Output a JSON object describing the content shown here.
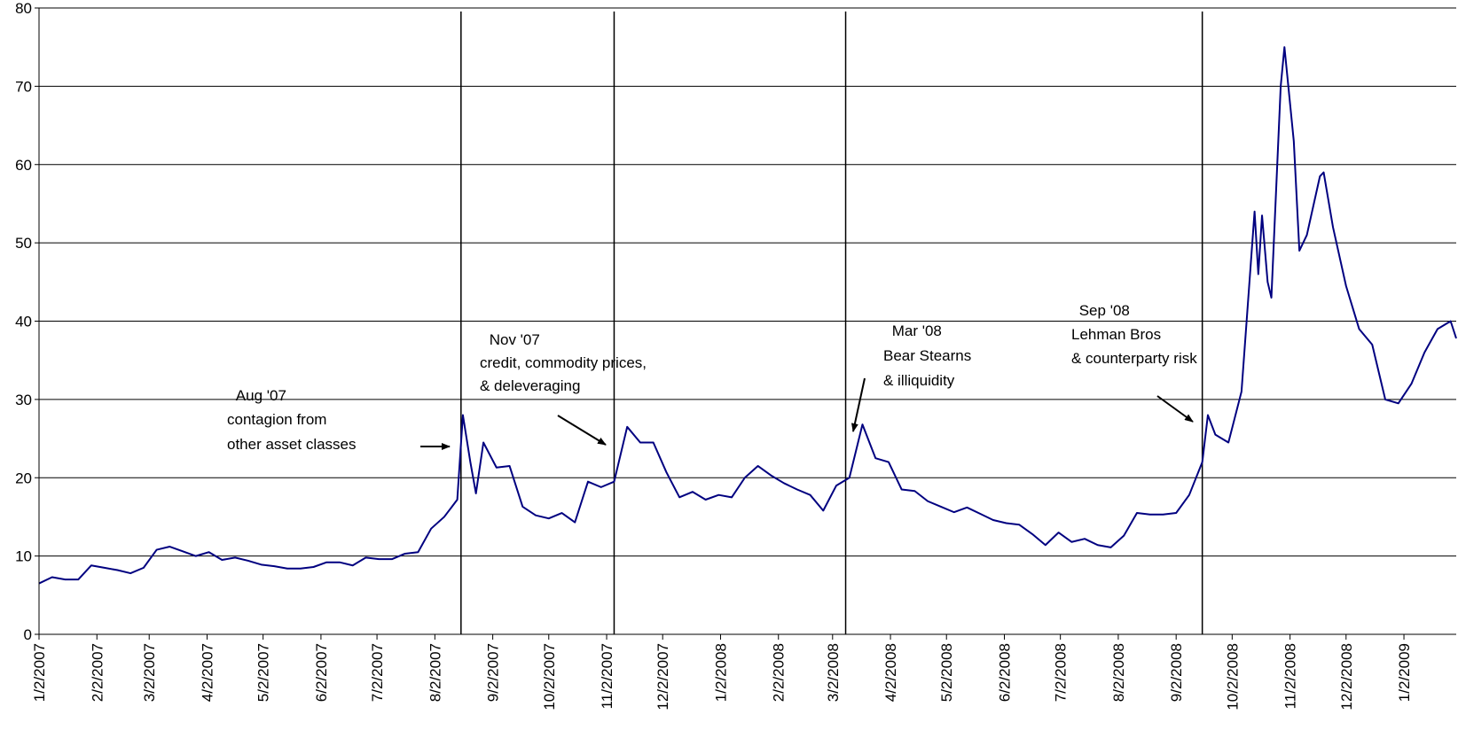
{
  "chart_data": {
    "type": "line",
    "x": [
      "1/2/2007",
      "1/9/2007",
      "1/16/2007",
      "1/23/2007",
      "1/30/2007",
      "2/6/2007",
      "2/13/2007",
      "2/20/2007",
      "2/27/2007",
      "3/6/2007",
      "3/13/2007",
      "3/20/2007",
      "3/27/2007",
      "4/3/2007",
      "4/10/2007",
      "4/17/2007",
      "4/24/2007",
      "5/1/2007",
      "5/8/2007",
      "5/15/2007",
      "5/22/2007",
      "5/29/2007",
      "6/5/2007",
      "6/12/2007",
      "6/19/2007",
      "6/26/2007",
      "7/3/2007",
      "7/10/2007",
      "7/17/2007",
      "7/24/2007",
      "7/31/2007",
      "8/7/2007",
      "8/14/2007",
      "8/17/2007",
      "8/21/2007",
      "8/24/2007",
      "8/28/2007",
      "9/4/2007",
      "9/11/2007",
      "9/18/2007",
      "9/25/2007",
      "10/2/2007",
      "10/9/2007",
      "10/16/2007",
      "10/23/2007",
      "10/30/2007",
      "11/6/2007",
      "11/13/2007",
      "11/20/2007",
      "11/27/2007",
      "12/4/2007",
      "12/11/2007",
      "12/18/2007",
      "12/25/2007",
      "1/1/2008",
      "1/8/2008",
      "1/15/2008",
      "1/22/2008",
      "1/29/2008",
      "2/5/2008",
      "2/12/2008",
      "2/19/2008",
      "2/26/2008",
      "3/4/2008",
      "3/11/2008",
      "3/18/2008",
      "3/25/2008",
      "4/1/2008",
      "4/8/2008",
      "4/15/2008",
      "4/22/2008",
      "4/29/2008",
      "5/6/2008",
      "5/13/2008",
      "5/20/2008",
      "5/27/2008",
      "6/3/2008",
      "6/10/2008",
      "6/17/2008",
      "6/24/2008",
      "7/1/2008",
      "7/8/2008",
      "7/15/2008",
      "7/22/2008",
      "7/29/2008",
      "8/5/2008",
      "8/12/2008",
      "8/19/2008",
      "8/26/2008",
      "9/2/2008",
      "9/9/2008",
      "9/16/2008",
      "9/19/2008",
      "9/23/2008",
      "9/30/2008",
      "10/7/2008",
      "10/14/2008",
      "10/16/2008",
      "10/18/2008",
      "10/21/2008",
      "10/23/2008",
      "10/28/2008",
      "10/30/2008",
      "11/4/2008",
      "11/7/2008",
      "11/11/2008",
      "11/18/2008",
      "11/20/2008",
      "11/25/2008",
      "12/2/2008",
      "12/9/2008",
      "12/16/2008",
      "12/23/2008",
      "12/30/2008",
      "1/6/2009",
      "1/13/2009",
      "1/20/2009",
      "1/27/2009",
      "1/30/2009"
    ],
    "series": [
      {
        "color": "#000080",
        "values": [
          6.5,
          7.3,
          7.0,
          7.0,
          8.8,
          8.5,
          8.2,
          7.8,
          8.5,
          10.8,
          11.2,
          10.6,
          10.0,
          10.5,
          9.5,
          9.8,
          9.4,
          8.9,
          8.7,
          8.4,
          8.4,
          8.6,
          9.2,
          9.2,
          8.8,
          9.8,
          9.6,
          9.6,
          10.3,
          10.5,
          13.5,
          15.0,
          17.2,
          28.0,
          22.0,
          18.0,
          24.5,
          21.3,
          21.5,
          16.3,
          15.2,
          14.8,
          15.5,
          14.3,
          19.5,
          18.8,
          19.5,
          26.5,
          24.5,
          24.5,
          20.7,
          17.5,
          18.2,
          17.2,
          17.8,
          17.5,
          20.0,
          21.5,
          20.3,
          19.3,
          18.5,
          17.8,
          15.8,
          19.0,
          20.0,
          26.8,
          22.5,
          22.0,
          18.5,
          18.3,
          17.0,
          16.3,
          15.6,
          16.2,
          15.4,
          14.6,
          14.2,
          14.0,
          12.8,
          11.4,
          13.0,
          11.8,
          12.2,
          11.4,
          11.1,
          12.6,
          15.5,
          15.3,
          15.3,
          15.5,
          17.8,
          22.0,
          28.0,
          25.5,
          24.5,
          31.0,
          54.0,
          46.0,
          53.5,
          45.0,
          43.0,
          70.0,
          75.0,
          63.0,
          49.0,
          51.0,
          58.5,
          59.0,
          52.0,
          44.5,
          39.0,
          37.0,
          30.0,
          29.5,
          32.0,
          36.0,
          39.0,
          40.0,
          37.8
        ]
      }
    ],
    "xlim": [
      "1/2/2007",
      "1/30/2009"
    ],
    "xticks": [
      "1/2/2007",
      "2/2/2007",
      "3/2/2007",
      "4/2/2007",
      "5/2/2007",
      "6/2/2007",
      "7/2/2007",
      "8/2/2007",
      "9/2/2007",
      "10/2/2007",
      "11/2/2007",
      "12/2/2007",
      "1/2/2008",
      "2/2/2008",
      "3/2/2008",
      "4/2/2008",
      "5/2/2008",
      "6/2/2008",
      "7/2/2008",
      "8/2/2008",
      "9/2/2008",
      "10/2/2008",
      "11/2/2008",
      "12/2/2008",
      "1/2/2009"
    ],
    "ylim": [
      0,
      80
    ],
    "yticks": [
      0,
      10,
      20,
      30,
      40,
      50,
      60,
      70,
      80
    ],
    "grid": true,
    "events": [
      {
        "date": "8/16/2007",
        "lines": [
          " Aug '07",
          "contagion from",
          "other asset classes"
        ]
      },
      {
        "date": "11/6/2007",
        "lines": [
          " Nov '07",
          "credit, commodity prices,",
          "& deleveraging"
        ]
      },
      {
        "date": "3/9/2008",
        "lines": [
          " Mar '08",
          "Bear Stearns",
          "& illiquidity"
        ]
      },
      {
        "date": "9/16/2008",
        "lines": [
          " Sep '08",
          "Lehman Bros",
          "& counterparty risk"
        ]
      }
    ]
  }
}
